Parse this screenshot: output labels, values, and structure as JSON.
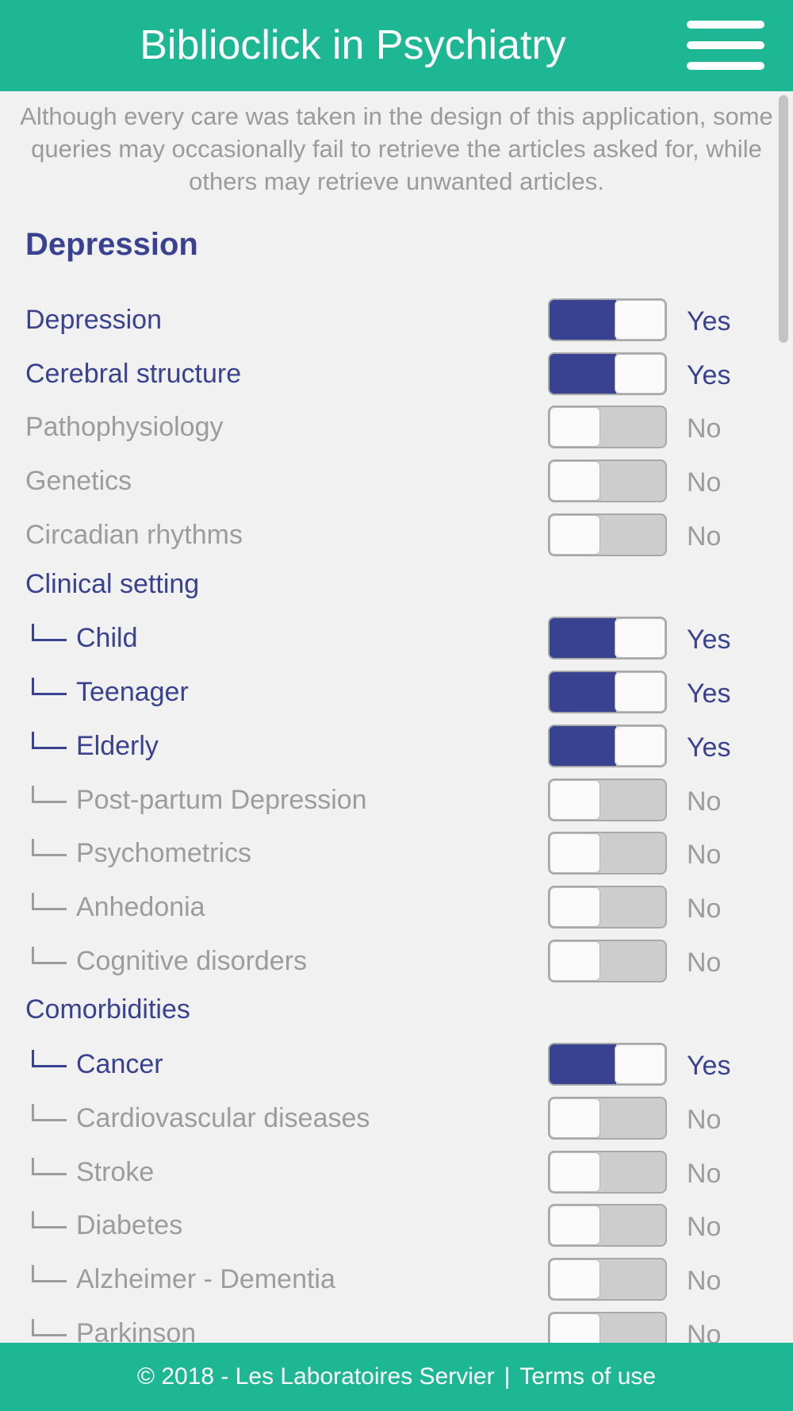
{
  "header": {
    "title": "Biblioclick in Psychiatry",
    "menu_icon": "hamburger-menu-icon"
  },
  "disclaimer": "Although every care was taken in the design of this application, some queries may occasionally fail to retrieve the articles asked for, while others may retrieve unwanted articles.",
  "section": {
    "title": "Depression"
  },
  "toggle_labels": {
    "yes": "Yes",
    "no": "No"
  },
  "colors": {
    "header_bg": "#1eb794",
    "active": "#394191",
    "inactive": "#9c9c9c",
    "background": "#f2f1f2"
  },
  "top_items": [
    {
      "label": "Depression",
      "on": true
    },
    {
      "label": "Cerebral structure",
      "on": true
    },
    {
      "label": "Pathophysiology",
      "on": false
    },
    {
      "label": "Genetics",
      "on": false
    },
    {
      "label": "Circadian rhythms",
      "on": false
    }
  ],
  "groups": [
    {
      "label": "Clinical setting",
      "items": [
        {
          "label": "Child",
          "on": true
        },
        {
          "label": "Teenager",
          "on": true
        },
        {
          "label": "Elderly",
          "on": true
        },
        {
          "label": "Post-partum Depression",
          "on": false
        },
        {
          "label": "Psychometrics",
          "on": false
        },
        {
          "label": "Anhedonia",
          "on": false
        },
        {
          "label": "Cognitive disorders",
          "on": false
        }
      ]
    },
    {
      "label": "Comorbidities",
      "items": [
        {
          "label": "Cancer",
          "on": true
        },
        {
          "label": "Cardiovascular diseases",
          "on": false
        },
        {
          "label": "Stroke",
          "on": false
        },
        {
          "label": "Diabetes",
          "on": false
        },
        {
          "label": "Alzheimer - Dementia",
          "on": false
        },
        {
          "label": "Parkinson",
          "on": false
        }
      ]
    }
  ],
  "footer": {
    "copyright": "© 2018 - Les Laboratoires Servier",
    "separator": "|",
    "terms": "Terms of use"
  }
}
